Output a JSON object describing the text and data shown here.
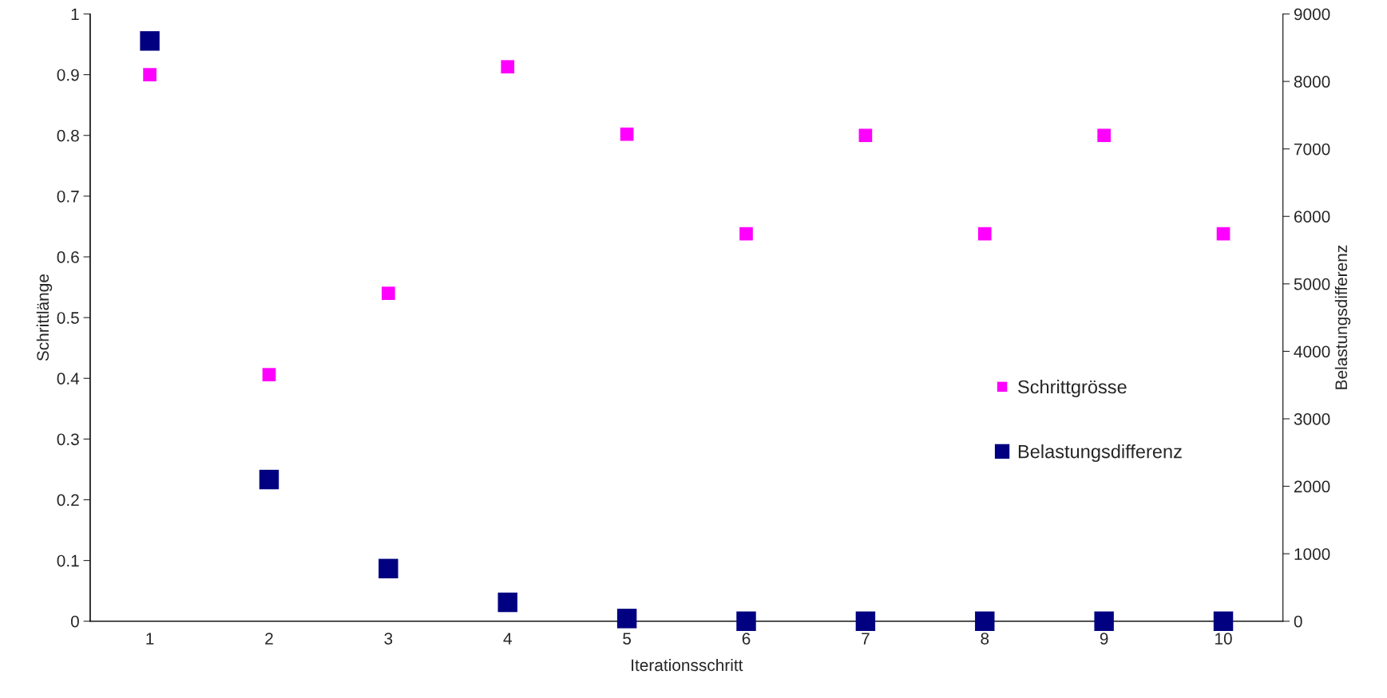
{
  "chart_data": {
    "type": "scatter",
    "xlabel": "Iterationsschritt",
    "ylabel": "Schrittlänge",
    "y2label": "Belastungsdifferenz",
    "categories": [
      "1",
      "2",
      "3",
      "4",
      "5",
      "6",
      "7",
      "8",
      "9",
      "10"
    ],
    "series": [
      {
        "name": "Schrittgrösse",
        "color": "#ff00ff",
        "marker": "square",
        "values": [
          0.9,
          0.406,
          0.54,
          0.913,
          0.802,
          0.638,
          0.8,
          0.638,
          0.8,
          0.638
        ]
      },
      {
        "name": "Belastungsdifferenz",
        "color": "#000080",
        "marker": "square",
        "axis": "y2",
        "values": [
          8600,
          2100,
          780,
          280,
          40,
          0,
          0,
          0,
          0,
          0
        ]
      }
    ],
    "ylim": [
      0,
      1
    ],
    "yticks": [
      0,
      0.1,
      0.2,
      0.3,
      0.4,
      0.5,
      0.6,
      0.7,
      0.8,
      0.9,
      1
    ],
    "y2lim": [
      0,
      9000
    ],
    "y2ticks": [
      0,
      1000,
      2000,
      3000,
      4000,
      5000,
      6000,
      7000,
      8000,
      9000
    ],
    "legend": "right",
    "grid": false
  }
}
